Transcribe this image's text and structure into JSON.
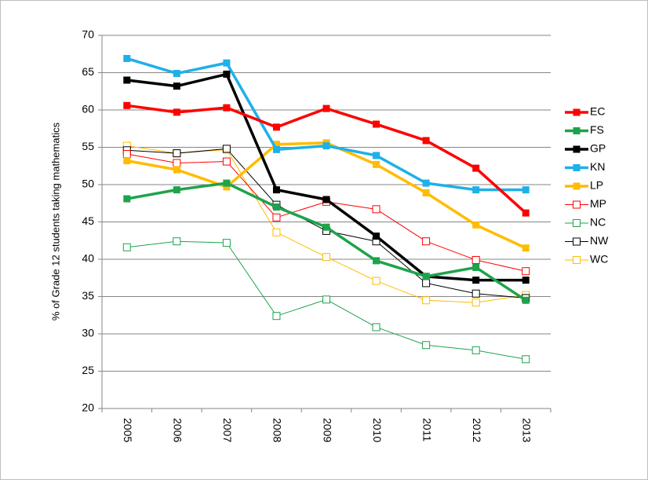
{
  "chart_data": {
    "type": "line",
    "y_label": "% of Grade 12 students taking  mathematics",
    "categories": [
      "2005",
      "2006",
      "2007",
      "2008",
      "2009",
      "2010",
      "2011",
      "2012",
      "2013"
    ],
    "ylim": [
      20,
      70
    ],
    "yticks": [
      20,
      25,
      30,
      35,
      40,
      45,
      50,
      55,
      60,
      65,
      70
    ],
    "grid": true,
    "legend": "right",
    "series": [
      {
        "name": "EC",
        "color": "#ff0000",
        "line_width": 3.5,
        "marker_fill": true,
        "values": [
          60.6,
          59.7,
          60.3,
          57.7,
          60.2,
          58.1,
          55.9,
          52.2,
          46.2
        ]
      },
      {
        "name": "FS",
        "color": "#1ea34c",
        "line_width": 3.5,
        "marker_fill": true,
        "values": [
          48.1,
          49.3,
          50.2,
          47.0,
          44.3,
          39.8,
          37.7,
          38.9,
          34.5
        ]
      },
      {
        "name": "GP",
        "color": "#000000",
        "line_width": 3.5,
        "marker_fill": true,
        "values": [
          64.0,
          63.2,
          64.8,
          49.3,
          48.0,
          43.1,
          37.7,
          37.2,
          37.2
        ]
      },
      {
        "name": "KN",
        "color": "#1eb0e8",
        "line_width": 3.5,
        "marker_fill": true,
        "values": [
          66.9,
          64.9,
          66.3,
          54.7,
          55.2,
          53.9,
          50.2,
          49.3,
          49.3
        ]
      },
      {
        "name": "LP",
        "color": "#ffbc00",
        "line_width": 3.5,
        "marker_fill": true,
        "values": [
          53.2,
          52.0,
          49.7,
          55.4,
          55.6,
          52.7,
          48.9,
          44.6,
          41.5
        ]
      },
      {
        "name": "MP",
        "color": "#ff0000",
        "line_width": 1,
        "marker_fill": false,
        "values": [
          54.1,
          52.9,
          53.1,
          45.6,
          47.7,
          46.7,
          42.4,
          39.9,
          38.4
        ]
      },
      {
        "name": "NC",
        "color": "#1ea34c",
        "line_width": 1,
        "marker_fill": false,
        "values": [
          41.6,
          42.4,
          42.2,
          32.4,
          34.6,
          30.9,
          28.5,
          27.8,
          26.6
        ]
      },
      {
        "name": "NW",
        "color": "#000000",
        "line_width": 1,
        "marker_fill": false,
        "values": [
          54.6,
          54.2,
          54.8,
          47.3,
          43.8,
          42.4,
          36.8,
          35.4,
          34.8
        ]
      },
      {
        "name": "WC",
        "color": "#ffbc00",
        "line_width": 1,
        "marker_fill": false,
        "values": [
          55.2,
          54.2,
          54.7,
          43.6,
          40.3,
          37.1,
          34.5,
          34.2,
          35.2
        ]
      }
    ]
  }
}
